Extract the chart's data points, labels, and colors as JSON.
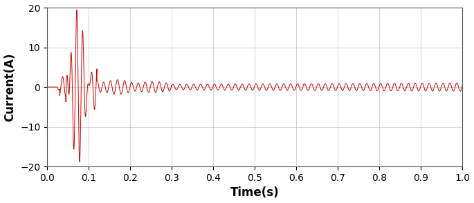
{
  "title": "",
  "xlabel": "Time(s)",
  "ylabel": "Current(A)",
  "xlim": [
    0,
    1
  ],
  "ylim": [
    -20,
    20
  ],
  "xticks": [
    0,
    0.1,
    0.2,
    0.3,
    0.4,
    0.5,
    0.6,
    0.7,
    0.8,
    0.9,
    1.0
  ],
  "yticks": [
    -20,
    -10,
    0,
    10,
    20
  ],
  "line_color": "#cc0000",
  "line_width": 0.7,
  "bg_color": "#ffffff",
  "grid_color": "#c0c0c0",
  "font_size_label": 12,
  "font_size_tick": 10
}
